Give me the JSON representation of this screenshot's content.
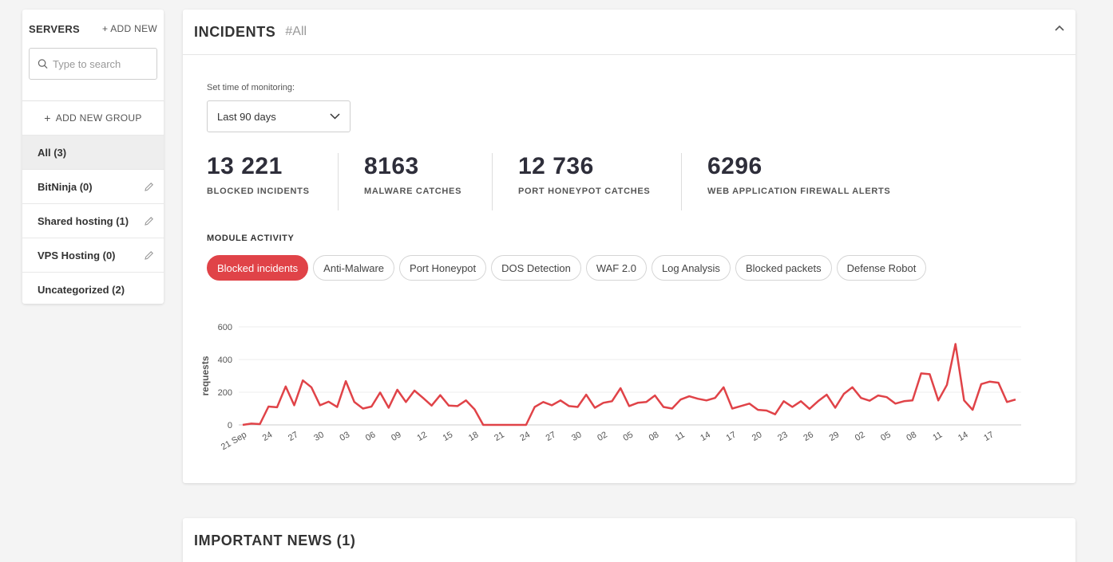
{
  "sidebar": {
    "title": "SERVERS",
    "add_new": "+ ADD NEW",
    "search_placeholder": "Type to search",
    "add_group": "ADD NEW GROUP",
    "items": [
      {
        "label": "All (3)",
        "active": true,
        "editable": false
      },
      {
        "label": "BitNinja (0)",
        "active": false,
        "editable": true
      },
      {
        "label": "Shared hosting (1)",
        "active": false,
        "editable": true
      },
      {
        "label": "VPS Hosting (0)",
        "active": false,
        "editable": true
      },
      {
        "label": "Uncategorized (2)",
        "active": false,
        "editable": false
      }
    ]
  },
  "incidents": {
    "title": "INCIDENTS",
    "tag": "#All",
    "monitoring_label": "Set time of monitoring:",
    "monitoring_value": "Last 90 days",
    "stats": [
      {
        "value": "13 221",
        "label": "BLOCKED INCIDENTS"
      },
      {
        "value": "8163",
        "label": "MALWARE CATCHES"
      },
      {
        "value": "12 736",
        "label": "PORT HONEYPOT CATCHES"
      },
      {
        "value": "6296",
        "label": "WEB APPLICATION FIREWALL ALERTS"
      }
    ],
    "module_title": "MODULE ACTIVITY",
    "modules": [
      "Blocked incidents",
      "Anti-Malware",
      "Port Honeypot",
      "DOS Detection",
      "WAF 2.0",
      "Log Analysis",
      "Blocked packets",
      "Defense Robot"
    ],
    "active_module": 0
  },
  "chart_data": {
    "type": "line",
    "ylabel": "requests",
    "ylim": [
      0,
      600
    ],
    "yticks": [
      0,
      200,
      400,
      600
    ],
    "grid": true,
    "color": "#e04348",
    "xtick_labels": [
      "21 Sep",
      "24",
      "27",
      "30",
      "03",
      "06",
      "09",
      "12",
      "15",
      "18",
      "21",
      "24",
      "27",
      "30",
      "02",
      "05",
      "08",
      "11",
      "14",
      "17",
      "20",
      "23",
      "26",
      "29",
      "02",
      "05",
      "08",
      "11",
      "14",
      "17"
    ],
    "values": [
      0,
      8,
      5,
      112,
      108,
      235,
      120,
      272,
      230,
      120,
      142,
      110,
      268,
      140,
      100,
      112,
      198,
      105,
      215,
      140,
      210,
      165,
      118,
      182,
      118,
      115,
      150,
      95,
      0,
      0,
      0,
      0,
      0,
      0,
      110,
      140,
      120,
      150,
      115,
      110,
      185,
      105,
      135,
      145,
      225,
      115,
      135,
      140,
      180,
      110,
      100,
      155,
      175,
      160,
      150,
      165,
      230,
      100,
      115,
      130,
      92,
      88,
      65,
      145,
      110,
      145,
      98,
      145,
      185,
      105,
      190,
      230,
      165,
      148,
      180,
      170,
      130,
      145,
      150,
      315,
      310,
      150,
      245,
      495,
      150,
      92,
      250,
      265,
      258,
      140,
      155
    ]
  },
  "news": {
    "title": "IMPORTANT NEWS (1)"
  }
}
